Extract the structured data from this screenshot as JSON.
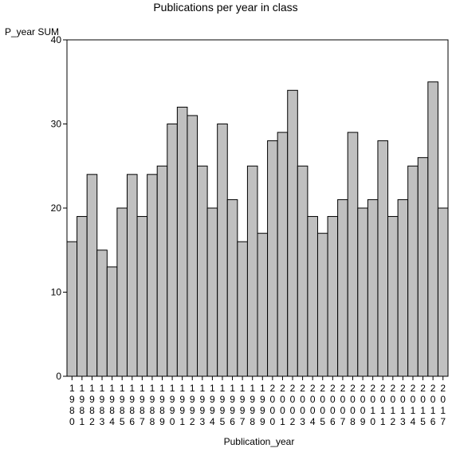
{
  "chart_data": {
    "type": "bar",
    "title": "Publications per year in class",
    "ylabel": "P_year SUM",
    "xlabel": "Publication_year",
    "ylim": [
      0,
      40
    ],
    "yticks": [
      0,
      10,
      20,
      30,
      40
    ],
    "grid": false,
    "bar_color": "#c0c0c0",
    "categories": [
      "1980",
      "1981",
      "1982",
      "1983",
      "1984",
      "1985",
      "1986",
      "1987",
      "1988",
      "1989",
      "1990",
      "1991",
      "1992",
      "1993",
      "1994",
      "1995",
      "1996",
      "1997",
      "1998",
      "1999",
      "2000",
      "2001",
      "2002",
      "2003",
      "2004",
      "2005",
      "2006",
      "2007",
      "2008",
      "2009",
      "2010",
      "2011",
      "2012",
      "2013",
      "2014",
      "2015",
      "2016",
      "2017"
    ],
    "values": [
      16,
      19,
      24,
      15,
      13,
      20,
      24,
      19,
      24,
      25,
      30,
      32,
      31,
      25,
      20,
      30,
      21,
      16,
      25,
      17,
      28,
      29,
      34,
      25,
      19,
      17,
      19,
      21,
      29,
      20,
      21,
      28,
      19,
      21,
      25,
      26,
      35,
      20
    ]
  }
}
